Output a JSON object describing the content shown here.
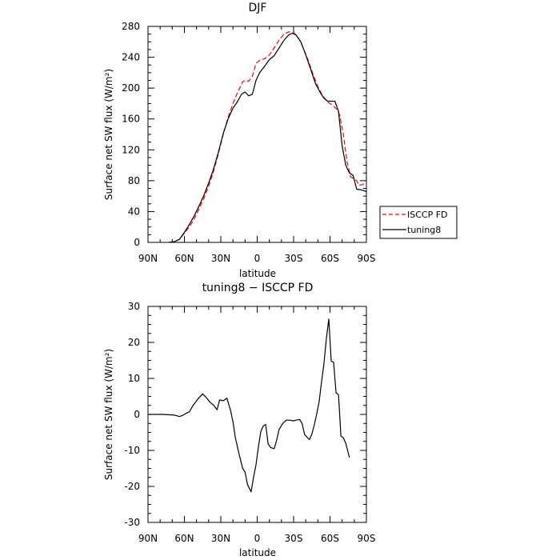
{
  "chart_data": [
    {
      "type": "line",
      "title": "DJF",
      "xlabel": "latitude",
      "ylabel": "Surface net SW flux (W/m²)",
      "xlim": [
        -90,
        90
      ],
      "ylim": [
        0,
        280
      ],
      "xticks": [
        -90,
        -60,
        -30,
        0,
        30,
        60,
        90
      ],
      "xtick_labels": [
        "90N",
        "60N",
        "30N",
        "0",
        "30S",
        "60S",
        "90S"
      ],
      "yticks": [
        0,
        40,
        80,
        120,
        160,
        200,
        240,
        280
      ],
      "legend_position": "right",
      "series": [
        {
          "name": "ISCCP FD",
          "color": "#ff0000",
          "dash": "dashed",
          "points": [
            [
              -73,
              0
            ],
            [
              -68,
              1
            ],
            [
              -64,
              4
            ],
            [
              -60,
              12
            ],
            [
              -56,
              20
            ],
            [
              -52,
              30
            ],
            [
              -48,
              43
            ],
            [
              -44,
              57
            ],
            [
              -40,
              73
            ],
            [
              -36,
              92
            ],
            [
              -32,
              115
            ],
            [
              -28,
              140
            ],
            [
              -24,
              162
            ],
            [
              -20,
              180
            ],
            [
              -16,
              195
            ],
            [
              -12,
              208
            ],
            [
              -10,
              210
            ],
            [
              -7,
              209
            ],
            [
              -4,
              215
            ],
            [
              -1,
              232
            ],
            [
              2,
              236
            ],
            [
              6,
              238
            ],
            [
              10,
              243
            ],
            [
              14,
              252
            ],
            [
              18,
              262
            ],
            [
              22,
              270
            ],
            [
              26,
              273
            ],
            [
              30,
              272
            ],
            [
              34,
              265
            ],
            [
              38,
              252
            ],
            [
              42,
              236
            ],
            [
              46,
              218
            ],
            [
              50,
              202
            ],
            [
              54,
              190
            ],
            [
              58,
              182
            ],
            [
              62,
              178
            ],
            [
              66,
              172
            ],
            [
              68,
              165
            ],
            [
              71,
              140
            ],
            [
              74,
              105
            ],
            [
              77,
              85
            ],
            [
              80,
              82
            ],
            [
              82,
              80
            ],
            [
              84,
              74
            ],
            [
              87,
              75
            ],
            [
              90,
              78
            ]
          ]
        },
        {
          "name": "tuning8",
          "color": "#000000",
          "dash": "solid",
          "points": [
            [
              -73,
              0
            ],
            [
              -68,
              1
            ],
            [
              -64,
              4
            ],
            [
              -60,
              13
            ],
            [
              -56,
              23
            ],
            [
              -52,
              34
            ],
            [
              -48,
              47
            ],
            [
              -44,
              61
            ],
            [
              -40,
              77
            ],
            [
              -36,
              95
            ],
            [
              -32,
              117
            ],
            [
              -28,
              141
            ],
            [
              -24,
              160
            ],
            [
              -20,
              174
            ],
            [
              -16,
              183
            ],
            [
              -13,
              192
            ],
            [
              -10,
              195
            ],
            [
              -7,
              190
            ],
            [
              -4,
              192
            ],
            [
              -1,
              210
            ],
            [
              2,
              220
            ],
            [
              6,
              228
            ],
            [
              10,
              237
            ],
            [
              14,
              242
            ],
            [
              18,
              252
            ],
            [
              22,
              262
            ],
            [
              26,
              269
            ],
            [
              29,
              271
            ],
            [
              32,
              269
            ],
            [
              36,
              260
            ],
            [
              40,
              243
            ],
            [
              44,
              225
            ],
            [
              48,
              206
            ],
            [
              52,
              194
            ],
            [
              55,
              187
            ],
            [
              58,
              183
            ],
            [
              61,
              183
            ],
            [
              64,
              183
            ],
            [
              67,
              170
            ],
            [
              70,
              125
            ],
            [
              73,
              100
            ],
            [
              76,
              90
            ],
            [
              79,
              87
            ],
            [
              82,
              69
            ],
            [
              86,
              68
            ],
            [
              90,
              66
            ]
          ]
        }
      ]
    },
    {
      "type": "line",
      "title": "tuning8 − ISCCP FD",
      "xlabel": "latitude",
      "ylabel": "Surface net SW flux (W/m²)",
      "xlim": [
        -90,
        90
      ],
      "ylim": [
        -30,
        30
      ],
      "xticks": [
        -90,
        -60,
        -30,
        0,
        30,
        60,
        90
      ],
      "xtick_labels": [
        "90N",
        "60N",
        "30N",
        "0",
        "30S",
        "60S",
        "90S"
      ],
      "yticks": [
        -30,
        -20,
        -10,
        0,
        10,
        20,
        30
      ],
      "series": [
        {
          "color": "#000000",
          "dash": "solid",
          "points": [
            [
              -90,
              0
            ],
            [
              -84,
              0
            ],
            [
              -78,
              0
            ],
            [
              -72,
              -0.1
            ],
            [
              -68,
              -0.2
            ],
            [
              -64,
              -0.6
            ],
            [
              -61,
              -0.2
            ],
            [
              -58,
              0.4
            ],
            [
              -56,
              0.7
            ],
            [
              -53,
              2.4
            ],
            [
              -50,
              3.8
            ],
            [
              -48,
              4.6
            ],
            [
              -45,
              5.7
            ],
            [
              -42,
              4.7
            ],
            [
              -39,
              3.4
            ],
            [
              -36,
              2.6
            ],
            [
              -33,
              1.3
            ],
            [
              -31,
              4
            ],
            [
              -28,
              3.8
            ],
            [
              -25,
              4.5
            ],
            [
              -22,
              1.2
            ],
            [
              -20,
              -2
            ],
            [
              -18,
              -6.5
            ],
            [
              -15,
              -11
            ],
            [
              -12,
              -15
            ],
            [
              -10,
              -16
            ],
            [
              -8,
              -19.5
            ],
            [
              -5,
              -21.5
            ],
            [
              -3,
              -17.5
            ],
            [
              -1,
              -14
            ],
            [
              1,
              -9
            ],
            [
              3,
              -4.7
            ],
            [
              5,
              -3.2
            ],
            [
              7,
              -2.8
            ],
            [
              9,
              -8.1
            ],
            [
              11,
              -9.2
            ],
            [
              14,
              -9.5
            ],
            [
              16,
              -7.2
            ],
            [
              18,
              -4.2
            ],
            [
              21,
              -2.5
            ],
            [
              24,
              -1.6
            ],
            [
              27,
              -1.6
            ],
            [
              30,
              -1.8
            ],
            [
              32,
              -1.6
            ],
            [
              35,
              -1.4
            ],
            [
              37,
              -2.5
            ],
            [
              39,
              -5.5
            ],
            [
              41,
              -6.3
            ],
            [
              43,
              -7
            ],
            [
              45,
              -5.5
            ],
            [
              47,
              -3
            ],
            [
              49,
              0
            ],
            [
              51,
              3.5
            ],
            [
              53,
              9
            ],
            [
              55,
              14
            ],
            [
              57,
              21
            ],
            [
              59,
              26.5
            ],
            [
              61,
              14.8
            ],
            [
              63,
              14.5
            ],
            [
              65,
              6
            ],
            [
              67,
              5.5
            ],
            [
              68,
              0
            ],
            [
              69,
              -6
            ],
            [
              71,
              -6.5
            ],
            [
              73,
              -8
            ],
            [
              76,
              -12
            ]
          ]
        }
      ]
    }
  ]
}
